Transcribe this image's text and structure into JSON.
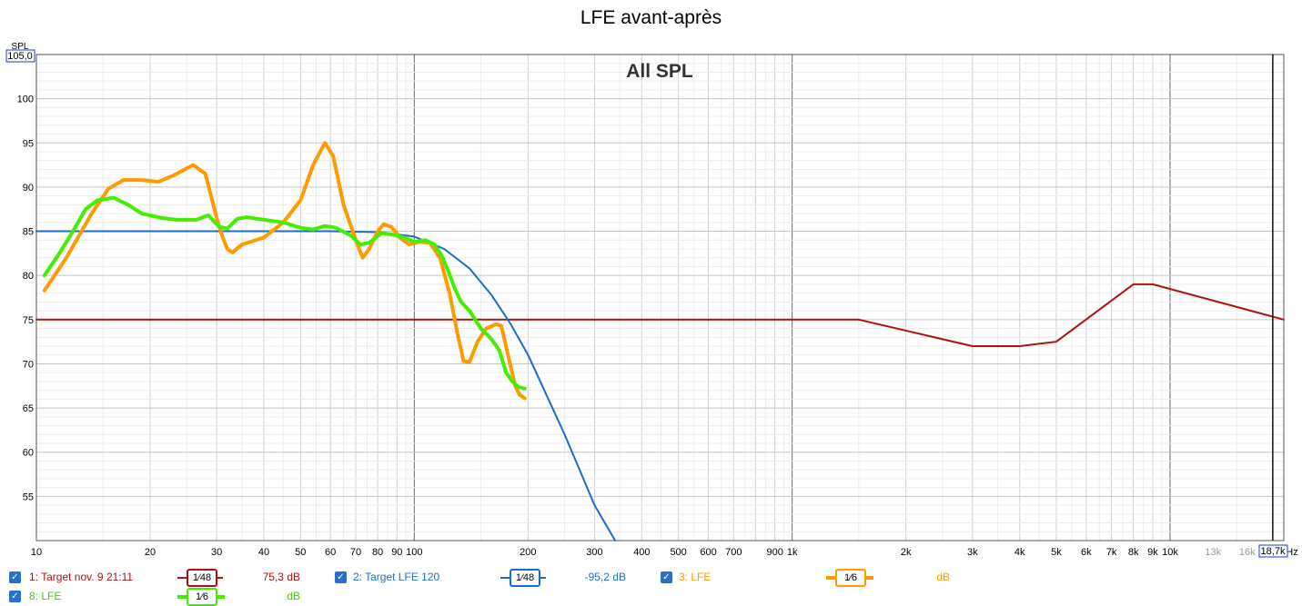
{
  "chart_data": {
    "type": "line",
    "title": "LFE avant-après",
    "subtitle": "All SPL",
    "ylabel": "SPL",
    "xlabel": "Hz",
    "x_scale": "log",
    "xlim": [
      10,
      20000
    ],
    "ylim": [
      50,
      105
    ],
    "y_top_label": "105,0",
    "x_cursor_label": "18,7k",
    "x_ticks": [
      {
        "v": 10,
        "label": "10",
        "major": true
      },
      {
        "v": 20,
        "label": "20"
      },
      {
        "v": 30,
        "label": "30"
      },
      {
        "v": 40,
        "label": "40"
      },
      {
        "v": 50,
        "label": "50"
      },
      {
        "v": 60,
        "label": "60"
      },
      {
        "v": 70,
        "label": "70"
      },
      {
        "v": 80,
        "label": "80"
      },
      {
        "v": 90,
        "label": "90"
      },
      {
        "v": 100,
        "label": "100",
        "major": true
      },
      {
        "v": 200,
        "label": "200"
      },
      {
        "v": 300,
        "label": "300"
      },
      {
        "v": 400,
        "label": "400"
      },
      {
        "v": 500,
        "label": "500"
      },
      {
        "v": 600,
        "label": "600"
      },
      {
        "v": 700,
        "label": "700"
      },
      {
        "v": 900,
        "label": "900"
      },
      {
        "v": 1000,
        "label": "1k",
        "major": true
      },
      {
        "v": 2000,
        "label": "2k"
      },
      {
        "v": 3000,
        "label": "3k"
      },
      {
        "v": 4000,
        "label": "4k"
      },
      {
        "v": 5000,
        "label": "5k"
      },
      {
        "v": 6000,
        "label": "6k"
      },
      {
        "v": 7000,
        "label": "7k"
      },
      {
        "v": 8000,
        "label": "8k"
      },
      {
        "v": 9000,
        "label": "9k"
      },
      {
        "v": 10000,
        "label": "10k",
        "major": true
      },
      {
        "v": 13000,
        "label": "13k",
        "faint": true
      },
      {
        "v": 16000,
        "label": "16k",
        "faint": true
      }
    ],
    "y_ticks": [
      55,
      60,
      65,
      70,
      75,
      80,
      85,
      90,
      95,
      100
    ],
    "grid": true,
    "series": [
      {
        "name": "Target nov. 9 21:11",
        "color": "#b01010",
        "points": [
          [
            10,
            75
          ],
          [
            1500,
            75
          ],
          [
            3000,
            72
          ],
          [
            4000,
            72
          ],
          [
            5000,
            72.5
          ],
          [
            8000,
            79
          ],
          [
            9000,
            79
          ],
          [
            20000,
            75
          ]
        ]
      },
      {
        "name": "Target LFE 120",
        "color": "#1a6fc4",
        "points": [
          [
            10,
            85
          ],
          [
            40,
            85
          ],
          [
            60,
            85
          ],
          [
            80,
            84.9
          ],
          [
            100,
            84.4
          ],
          [
            120,
            83
          ],
          [
            140,
            80.8
          ],
          [
            160,
            77.8
          ],
          [
            180,
            74.5
          ],
          [
            200,
            71
          ],
          [
            250,
            62
          ],
          [
            300,
            54
          ],
          [
            340,
            49
          ]
        ]
      },
      {
        "name": "LFE",
        "color": "#ff9a00",
        "points": [
          [
            10.5,
            78.3
          ],
          [
            12,
            82
          ],
          [
            14,
            87
          ],
          [
            15.5,
            89.8
          ],
          [
            17,
            90.8
          ],
          [
            19,
            90.8
          ],
          [
            21,
            90.6
          ],
          [
            23,
            91.3
          ],
          [
            26,
            92.5
          ],
          [
            28,
            91.5
          ],
          [
            30,
            86.5
          ],
          [
            31,
            84.5
          ],
          [
            32,
            83
          ],
          [
            33,
            82.6
          ],
          [
            35,
            83.5
          ],
          [
            40,
            84.3
          ],
          [
            45,
            86
          ],
          [
            50,
            88.5
          ],
          [
            54,
            92.5
          ],
          [
            58,
            95
          ],
          [
            61,
            93.5
          ],
          [
            65,
            88
          ],
          [
            70,
            84
          ],
          [
            73,
            82
          ],
          [
            76,
            83
          ],
          [
            80,
            85
          ],
          [
            83,
            85.8
          ],
          [
            87,
            85.5
          ],
          [
            92,
            84.2
          ],
          [
            97,
            83.5
          ],
          [
            103,
            83.8
          ],
          [
            110,
            83.7
          ],
          [
            117,
            82
          ],
          [
            124,
            78
          ],
          [
            130,
            73.5
          ],
          [
            135,
            70.3
          ],
          [
            140,
            70.2
          ],
          [
            147,
            72.5
          ],
          [
            155,
            74
          ],
          [
            165,
            74.5
          ],
          [
            170,
            74.3
          ],
          [
            177,
            71
          ],
          [
            185,
            67.5
          ],
          [
            190,
            66.5
          ],
          [
            196,
            66.1
          ]
        ]
      },
      {
        "name": "LFE",
        "color": "#44ee00",
        "points": [
          [
            10.5,
            80
          ],
          [
            11.5,
            82.5
          ],
          [
            12.5,
            85
          ],
          [
            13.5,
            87.5
          ],
          [
            14.5,
            88.5
          ],
          [
            16,
            88.8
          ],
          [
            17.5,
            88
          ],
          [
            19,
            87
          ],
          [
            21.5,
            86.5
          ],
          [
            23.5,
            86.3
          ],
          [
            26.5,
            86.3
          ],
          [
            28.5,
            86.8
          ],
          [
            30.5,
            85.5
          ],
          [
            32,
            85.3
          ],
          [
            34,
            86.4
          ],
          [
            36,
            86.6
          ],
          [
            40,
            86.3
          ],
          [
            45,
            86
          ],
          [
            50,
            85.4
          ],
          [
            54,
            85.2
          ],
          [
            58,
            85.6
          ],
          [
            62,
            85.4
          ],
          [
            68,
            84.5
          ],
          [
            72,
            83.5
          ],
          [
            76,
            83.7
          ],
          [
            82,
            84.8
          ],
          [
            88,
            84.6
          ],
          [
            94,
            84.3
          ],
          [
            100,
            83.8
          ],
          [
            107,
            84
          ],
          [
            113,
            83.5
          ],
          [
            118,
            82.3
          ],
          [
            123,
            80.5
          ],
          [
            128,
            78.5
          ],
          [
            133,
            77
          ],
          [
            140,
            76
          ],
          [
            150,
            74
          ],
          [
            160,
            72.8
          ],
          [
            168,
            71.5
          ],
          [
            175,
            69
          ],
          [
            182,
            68
          ],
          [
            188,
            67.4
          ],
          [
            196,
            67.2
          ]
        ]
      }
    ],
    "legend": [
      {
        "label": "1: Target nov. 9 21:11",
        "smoothing": "1⁄48",
        "value": "75,3 dB",
        "color": "#b01010",
        "checked": "✓"
      },
      {
        "label": "2: Target LFE 120",
        "smoothing": "1⁄48",
        "value": "-95,2 dB",
        "color": "#1a6fc4",
        "checked": "✓"
      },
      {
        "label": "3: LFE",
        "smoothing": "1⁄6",
        "value": "dB",
        "color": "#ff9a00",
        "checked": "✓"
      },
      {
        "label": "8: LFE",
        "smoothing": "1⁄6",
        "value": "dB",
        "color": "#44ee00",
        "checked": "✓"
      }
    ]
  }
}
